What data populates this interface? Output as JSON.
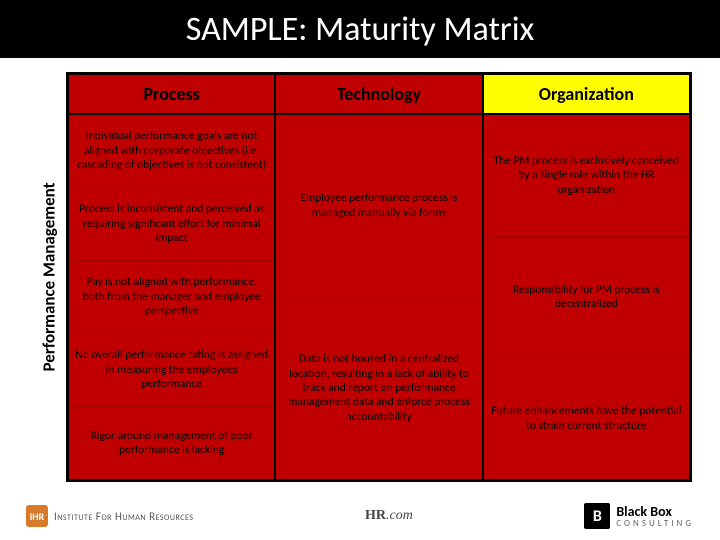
{
  "title": "SAMPLE: Maturity Matrix",
  "row_label": "Performance Management",
  "headers": {
    "process": "Process",
    "technology": "Technology",
    "organization": "Organization"
  },
  "header_bg": {
    "process": "#c00000",
    "technology": "#c00000",
    "organization": "#ffff00"
  },
  "body_bg": "#c00000",
  "columns": {
    "process": [
      "Individual performance goals are not aligned with corporate objectives (i.e. cascading of objectives is not consistent)",
      "Process is inconsistent and perceived as requiring significant effort for minimal impact",
      "Pay is not aligned with performance, both from the manager and employee perspective",
      "No overall performance rating is assigned in measuring the employees performance",
      "Rigor around management of poor performance is lacking"
    ],
    "technology": [
      "Employee performance process is managed manually via forms",
      "Data is not housed in a centralized location, resulting in a lack of ability to track and report on performance management data and enforce process accountability"
    ],
    "organization": [
      "The PM process is exclusively conceived by a single role within the HR organization",
      "Responsibility for PM process is decentralized",
      "Future enhancements have the potential to strain current structure"
    ]
  },
  "footer": {
    "ihr_mark": "iHR",
    "ihr_text": "Institute For Human Resources",
    "hr_text_bold": "HR",
    "hr_text_rest": ".com",
    "bb_mark": "B",
    "bb_line1": "Black Box",
    "bb_line2": "CONSULTING"
  }
}
